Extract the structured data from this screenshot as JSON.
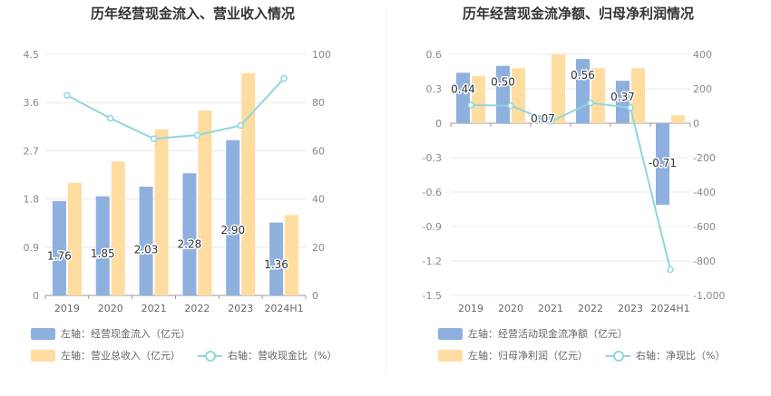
{
  "colors": {
    "bar1": "#8eb0de",
    "bar2": "#ffdc9f",
    "line": "#8ed6dd",
    "grid": "#e8e8e8",
    "axis": "#999999"
  },
  "chart_data": [
    {
      "type": "bar",
      "title": "历年经营现金流入、营业收入情况",
      "categories": [
        "2019",
        "2020",
        "2021",
        "2022",
        "2023",
        "2024H1"
      ],
      "left_axis": {
        "min": 0,
        "max": 4.5,
        "ticks": [
          "0",
          "0.9",
          "1.8",
          "2.7",
          "3.6",
          "4.5"
        ]
      },
      "right_axis": {
        "min": 0,
        "max": 100,
        "ticks": [
          "0",
          "20",
          "40",
          "60",
          "80",
          "100"
        ]
      },
      "series": [
        {
          "name": "左轴：经营现金流入（亿元）",
          "axis": "left",
          "kind": "bar",
          "values": [
            1.76,
            1.85,
            2.03,
            2.28,
            2.9,
            1.36
          ],
          "labels": [
            "1.76",
            "1.85",
            "2.03",
            "2.28",
            "2.90",
            "1.36"
          ]
        },
        {
          "name": "左轴：营业总收入（亿元）",
          "axis": "left",
          "kind": "bar",
          "values": [
            2.1,
            2.5,
            3.1,
            3.45,
            4.15,
            1.5
          ]
        },
        {
          "name": "右轴：营收现金比（%）",
          "axis": "right",
          "kind": "line",
          "values": [
            83,
            73.5,
            65,
            66.5,
            70.5,
            90
          ]
        }
      ]
    },
    {
      "type": "bar",
      "title": "历年经营现金流净额、归母净利润情况",
      "categories": [
        "2019",
        "2020",
        "2021",
        "2022",
        "2023",
        "2024H1"
      ],
      "left_axis": {
        "min": -1.5,
        "max": 0.6,
        "ticks": [
          "-1.5",
          "-1.2",
          "-0.9",
          "-0.6",
          "-0.3",
          "0",
          "0.3",
          "0.6"
        ]
      },
      "right_axis": {
        "min": -1000,
        "max": 400,
        "ticks": [
          "-1,000",
          "-800",
          "-600",
          "-400",
          "-200",
          "0",
          "200",
          "400"
        ]
      },
      "series": [
        {
          "name": "左轴：经营活动现金流净额（亿元）",
          "axis": "left",
          "kind": "bar",
          "values": [
            0.44,
            0.5,
            0.07,
            0.56,
            0.37,
            -0.71
          ],
          "labels": [
            "0.44",
            "0.50",
            "0.07",
            "0.56",
            "0.37",
            "-0.71"
          ]
        },
        {
          "name": "左轴：归母净利润（亿元）",
          "axis": "left",
          "kind": "bar",
          "values": [
            0.41,
            0.48,
            0.6,
            0.48,
            0.48,
            0.07
          ]
        },
        {
          "name": "右轴：净现比（%）",
          "axis": "right",
          "kind": "line",
          "values": [
            105,
            102,
            10,
            118,
            90,
            -850
          ]
        }
      ]
    }
  ]
}
